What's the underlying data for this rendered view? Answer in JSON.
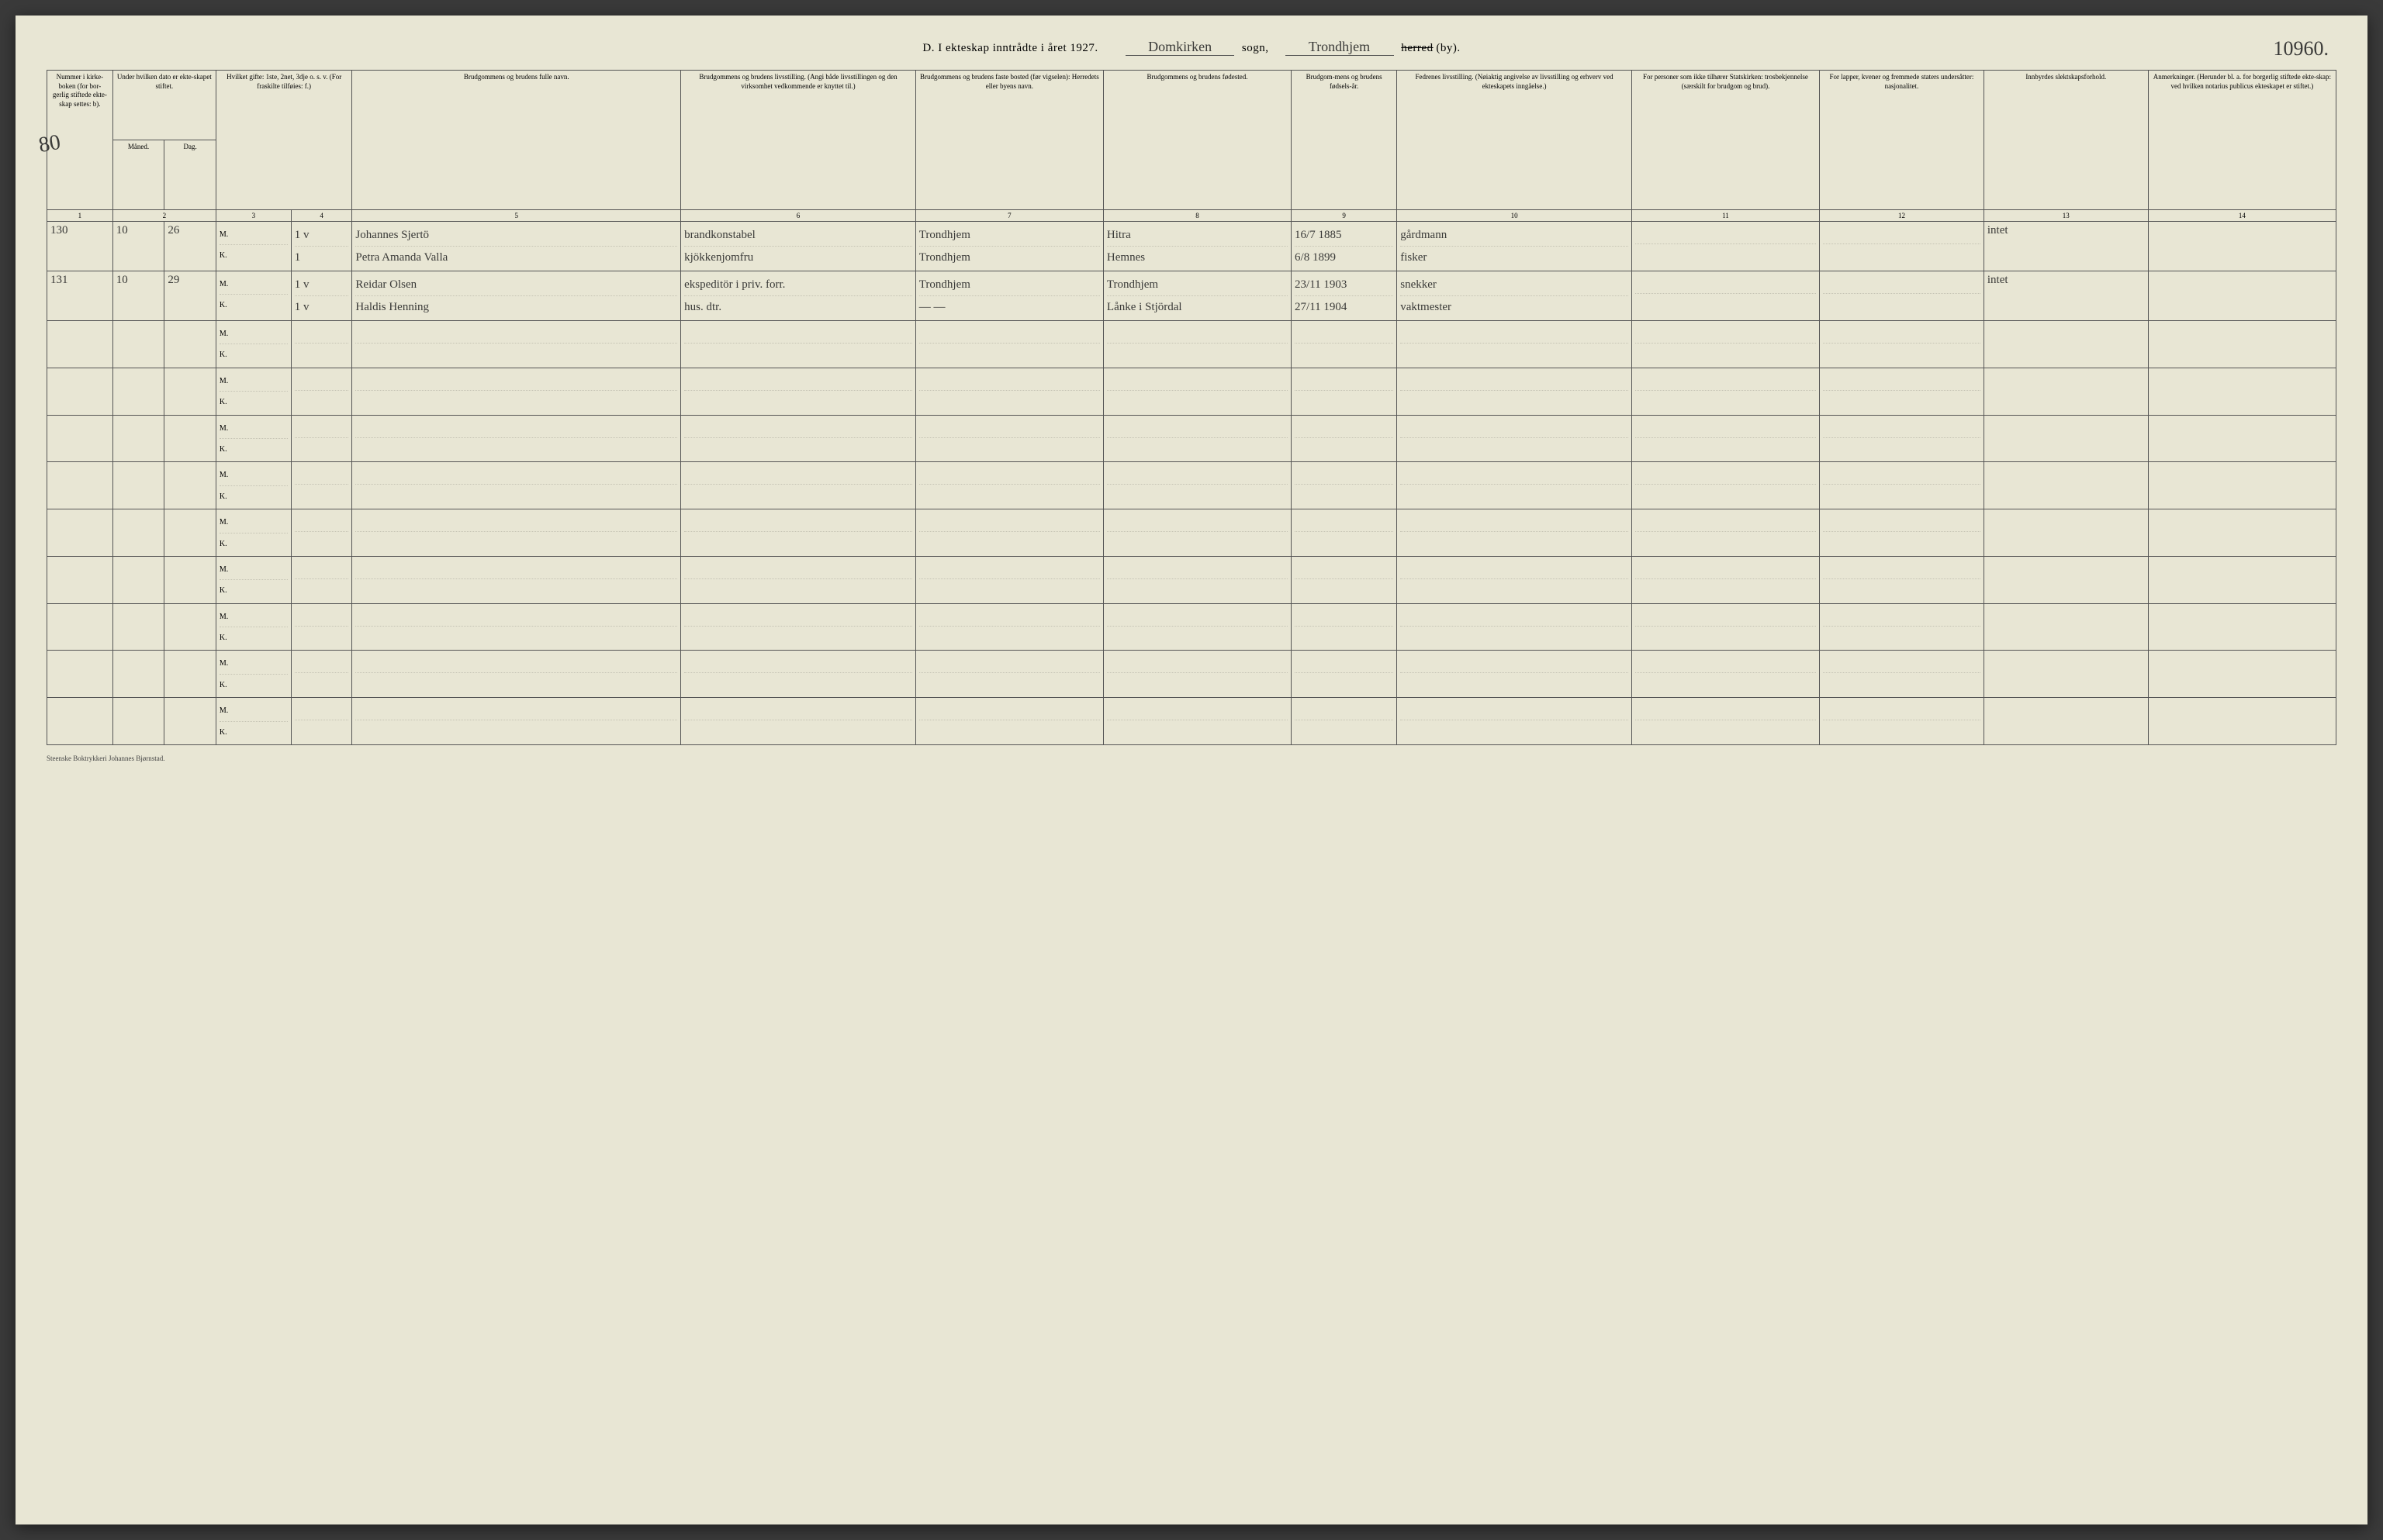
{
  "header": {
    "title_prefix": "D.  I ekteskap inntrådte i året 192",
    "year_suffix_printed": "7",
    "year_correction": ".",
    "sogn_value": "Domkirken",
    "sogn_label": "sogn,",
    "herred_value": "Trondhjem",
    "herred_label_struck": "herred",
    "herred_suffix": "(by).",
    "page_number": "10960.",
    "side_number": "80"
  },
  "columns": {
    "c1": "Nummer i kirke-boken (for bor-gerlig stiftede ekte-skap settes: b).",
    "c2": "Under hvilken dato er ekte-skapet stiftet.",
    "c2a": "Måned.",
    "c2b": "Dag.",
    "c3": "Hvilket gifte: 1ste, 2net, 3dje o. s. v. (For fraskilte tilføies: f.)",
    "c4": "",
    "c5": "Brudgommens og brudens fulle navn.",
    "c6": "Brudgommens og brudens livsstilling. (Angi både livsstillingen og den virksomhet vedkommende er knyttet til.)",
    "c7": "Brudgommens og brudens faste bosted (før vigselen): Herredets eller byens navn.",
    "c8": "Brudgommens og brudens fødested.",
    "c9": "Brudgom-mens og brudens fødsels-år.",
    "c10": "Fedrenes livsstilling. (Nøiaktig angivelse av livsstilling og erhverv ved ekteskapets inngåelse.)",
    "c11": "For personer som ikke tilhører Statskirken: trosbekjennelse (særskilt for brudgom og brud).",
    "c12": "For lapper, kvener og fremmede staters undersåtter: nasjonalitet.",
    "c13": "Innbyrdes slektskapsforhold.",
    "c14": "Anmerkninger. (Herunder bl. a. for borgerlig stiftede ekte-skap: ved hvilken notarius publicus ekteskapet er stiftet.)"
  },
  "colnums": [
    "1",
    "2",
    "",
    "3",
    "4",
    "5",
    "6",
    "7",
    "8",
    "9",
    "10",
    "11",
    "12",
    "13",
    "14"
  ],
  "mk_labels": {
    "m": "M.",
    "k": "K."
  },
  "rows": [
    {
      "num": "130",
      "maaned": "10",
      "dag": "26",
      "gifte_m": "1 v",
      "gifte_k": "1",
      "navn_m": "Johannes Sjertö",
      "navn_k": "Petra Amanda Valla",
      "stilling_m": "brandkonstabel",
      "stilling_k": "kjökkenjomfru",
      "bosted_m": "Trondhjem",
      "bosted_k": "Trondhjem",
      "fodested_m": "Hitra",
      "fodested_k": "Hemnes",
      "fodsel_m": "16/7 1885",
      "fodsel_k": "6/8 1899",
      "fedre_m": "gårdmann",
      "fedre_k": "fisker",
      "tros_m": "",
      "tros_k": "",
      "nasj_m": "",
      "nasj_k": "",
      "slekt": "intet",
      "anm": ""
    },
    {
      "num": "131",
      "maaned": "10",
      "dag": "29",
      "gifte_m": "1 v",
      "gifte_k": "1 v",
      "navn_m": "Reidar Olsen",
      "navn_k": "Haldis Henning",
      "stilling_m": "ekspeditör i priv. forr.",
      "stilling_k": "hus. dtr.",
      "bosted_m": "Trondhjem",
      "bosted_k": "—  —",
      "fodested_m": "Trondhjem",
      "fodested_k": "Lånke i Stjördal",
      "fodsel_m": "23/11 1903",
      "fodsel_k": "27/11 1904",
      "fedre_m": "snekker",
      "fedre_k": "vaktmester",
      "tros_m": "",
      "tros_k": "",
      "nasj_m": "",
      "nasj_k": "",
      "slekt": "intet",
      "anm": ""
    },
    {
      "num": "",
      "maaned": "",
      "dag": "",
      "gifte_m": "",
      "gifte_k": "",
      "navn_m": "",
      "navn_k": "",
      "stilling_m": "",
      "stilling_k": "",
      "bosted_m": "",
      "bosted_k": "",
      "fodested_m": "",
      "fodested_k": "",
      "fodsel_m": "",
      "fodsel_k": "",
      "fedre_m": "",
      "fedre_k": "",
      "tros_m": "",
      "tros_k": "",
      "nasj_m": "",
      "nasj_k": "",
      "slekt": "",
      "anm": ""
    },
    {
      "num": "",
      "maaned": "",
      "dag": "",
      "gifte_m": "",
      "gifte_k": "",
      "navn_m": "",
      "navn_k": "",
      "stilling_m": "",
      "stilling_k": "",
      "bosted_m": "",
      "bosted_k": "",
      "fodested_m": "",
      "fodested_k": "",
      "fodsel_m": "",
      "fodsel_k": "",
      "fedre_m": "",
      "fedre_k": "",
      "tros_m": "",
      "tros_k": "",
      "nasj_m": "",
      "nasj_k": "",
      "slekt": "",
      "anm": ""
    },
    {
      "num": "",
      "maaned": "",
      "dag": "",
      "gifte_m": "",
      "gifte_k": "",
      "navn_m": "",
      "navn_k": "",
      "stilling_m": "",
      "stilling_k": "",
      "bosted_m": "",
      "bosted_k": "",
      "fodested_m": "",
      "fodested_k": "",
      "fodsel_m": "",
      "fodsel_k": "",
      "fedre_m": "",
      "fedre_k": "",
      "tros_m": "",
      "tros_k": "",
      "nasj_m": "",
      "nasj_k": "",
      "slekt": "",
      "anm": ""
    },
    {
      "num": "",
      "maaned": "",
      "dag": "",
      "gifte_m": "",
      "gifte_k": "",
      "navn_m": "",
      "navn_k": "",
      "stilling_m": "",
      "stilling_k": "",
      "bosted_m": "",
      "bosted_k": "",
      "fodested_m": "",
      "fodested_k": "",
      "fodsel_m": "",
      "fodsel_k": "",
      "fedre_m": "",
      "fedre_k": "",
      "tros_m": "",
      "tros_k": "",
      "nasj_m": "",
      "nasj_k": "",
      "slekt": "",
      "anm": ""
    },
    {
      "num": "",
      "maaned": "",
      "dag": "",
      "gifte_m": "",
      "gifte_k": "",
      "navn_m": "",
      "navn_k": "",
      "stilling_m": "",
      "stilling_k": "",
      "bosted_m": "",
      "bosted_k": "",
      "fodested_m": "",
      "fodested_k": "",
      "fodsel_m": "",
      "fodsel_k": "",
      "fedre_m": "",
      "fedre_k": "",
      "tros_m": "",
      "tros_k": "",
      "nasj_m": "",
      "nasj_k": "",
      "slekt": "",
      "anm": ""
    },
    {
      "num": "",
      "maaned": "",
      "dag": "",
      "gifte_m": "",
      "gifte_k": "",
      "navn_m": "",
      "navn_k": "",
      "stilling_m": "",
      "stilling_k": "",
      "bosted_m": "",
      "bosted_k": "",
      "fodested_m": "",
      "fodested_k": "",
      "fodsel_m": "",
      "fodsel_k": "",
      "fedre_m": "",
      "fedre_k": "",
      "tros_m": "",
      "tros_k": "",
      "nasj_m": "",
      "nasj_k": "",
      "slekt": "",
      "anm": ""
    },
    {
      "num": "",
      "maaned": "",
      "dag": "",
      "gifte_m": "",
      "gifte_k": "",
      "navn_m": "",
      "navn_k": "",
      "stilling_m": "",
      "stilling_k": "",
      "bosted_m": "",
      "bosted_k": "",
      "fodested_m": "",
      "fodested_k": "",
      "fodsel_m": "",
      "fodsel_k": "",
      "fedre_m": "",
      "fedre_k": "",
      "tros_m": "",
      "tros_k": "",
      "nasj_m": "",
      "nasj_k": "",
      "slekt": "",
      "anm": ""
    },
    {
      "num": "",
      "maaned": "",
      "dag": "",
      "gifte_m": "",
      "gifte_k": "",
      "navn_m": "",
      "navn_k": "",
      "stilling_m": "",
      "stilling_k": "",
      "bosted_m": "",
      "bosted_k": "",
      "fodested_m": "",
      "fodested_k": "",
      "fodsel_m": "",
      "fodsel_k": "",
      "fedre_m": "",
      "fedre_k": "",
      "tros_m": "",
      "tros_k": "",
      "nasj_m": "",
      "nasj_k": "",
      "slekt": "",
      "anm": ""
    },
    {
      "num": "",
      "maaned": "",
      "dag": "",
      "gifte_m": "",
      "gifte_k": "",
      "navn_m": "",
      "navn_k": "",
      "stilling_m": "",
      "stilling_k": "",
      "bosted_m": "",
      "bosted_k": "",
      "fodested_m": "",
      "fodested_k": "",
      "fodsel_m": "",
      "fodsel_k": "",
      "fedre_m": "",
      "fedre_k": "",
      "tros_m": "",
      "tros_k": "",
      "nasj_m": "",
      "nasj_k": "",
      "slekt": "",
      "anm": ""
    }
  ],
  "footer": "Steenske Boktrykkeri Johannes Bjørnstad."
}
